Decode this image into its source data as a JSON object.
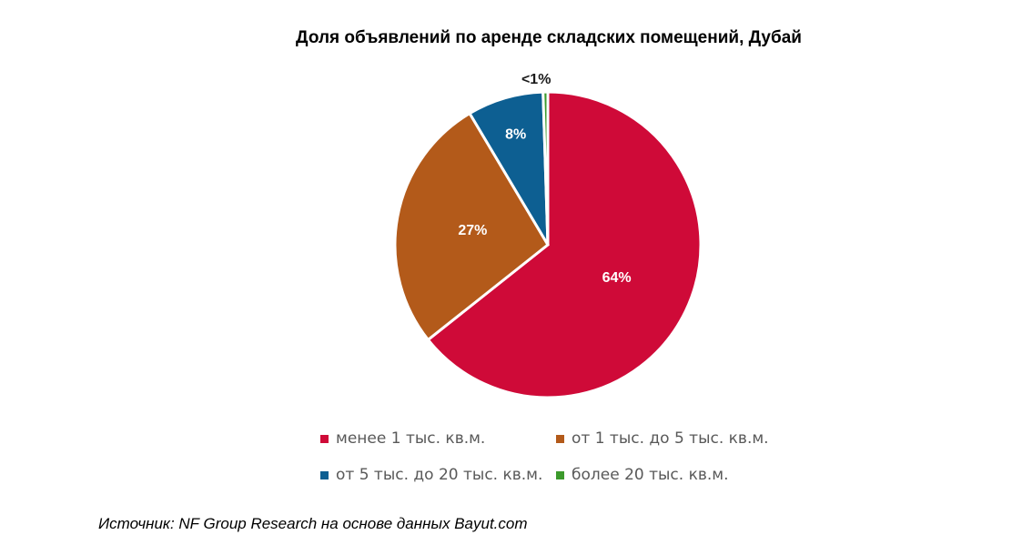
{
  "chart_data": {
    "type": "pie",
    "title": "Доля объявлений по аренде складских помещений, Дубай",
    "slices": [
      {
        "label": "менее 1 тыс. кв.м.",
        "value": 64,
        "display": "64%",
        "color": "#CF0A38"
      },
      {
        "label": "от 1 тыс. до 5 тыс. кв.м.",
        "value": 27,
        "display": "27%",
        "color": "#B35A1A"
      },
      {
        "label": "от 5 тыс. до 20 тыс. кв.м.",
        "value": 8,
        "display": "8%",
        "color": "#0D5F92"
      },
      {
        "label": "более 20 тыс. кв.м.",
        "value": 0.5,
        "display": "<1%",
        "color": "#3C9A2C"
      }
    ],
    "legend_position": "bottom"
  },
  "source": "Источник: NF Group Research на основе данных Bayut.com"
}
